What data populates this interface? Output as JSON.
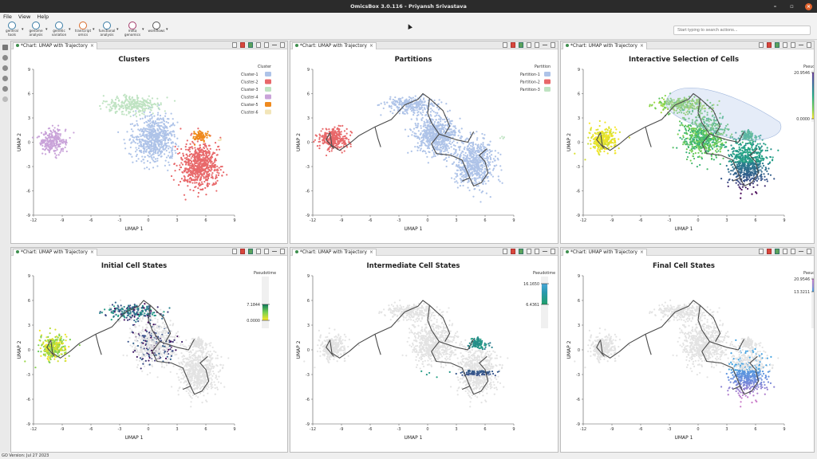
{
  "window": {
    "title": "OmicsBox 3.0.116 - Priyansh Srivastava"
  },
  "menu": [
    "File",
    "View",
    "Help"
  ],
  "toolbar": [
    {
      "label": "general\ntools",
      "icon": "gear-icon"
    },
    {
      "label": "genome\nanalysis",
      "icon": "genome-icon"
    },
    {
      "label": "genetic\nvariation",
      "icon": "variation-icon"
    },
    {
      "label": "transcript\nomics",
      "icon": "transcriptomics-icon"
    },
    {
      "label": "functional\nanalysis",
      "icon": "function-icon"
    },
    {
      "label": "meta\ngenomics",
      "icon": "metagenomics-icon"
    },
    {
      "label": "workflows",
      "icon": "workflow-icon"
    }
  ],
  "search": {
    "placeholder": "Start typing to search actions..."
  },
  "status": {
    "text": "GO Version: Jul 27 2023"
  },
  "tab_label": "*Chart: UMAP with Trajectory",
  "chart_data": [
    {
      "type": "scatter",
      "title": "Clusters",
      "xlabel": "UMAP 1",
      "ylabel": "UMAP 2",
      "xlim": [
        -12,
        9
      ],
      "ylim": [
        -9,
        9
      ],
      "xticks": [
        "-12",
        "-9",
        "-6",
        "-3",
        "0",
        "3",
        "6",
        "9"
      ],
      "yticks": [
        "-9",
        "-6",
        "-3",
        "0",
        "3",
        "6",
        "9"
      ],
      "legend": {
        "title": "Cluster",
        "placement": "top-right"
      },
      "series": [
        {
          "name": "Cluster-1",
          "color": "#aec3e8",
          "clusters": [
            [
              0.6,
              0.5,
              2.2,
              2.8,
              650
            ]
          ]
        },
        {
          "name": "Cluster-2",
          "color": "#e8686a",
          "clusters": [
            [
              5.3,
              -2.8,
              1.9,
              2.7,
              650
            ]
          ]
        },
        {
          "name": "Cluster-3",
          "color": "#bfe3c2",
          "clusters": [
            [
              -1.6,
              4.6,
              2.8,
              1.0,
              280
            ]
          ]
        },
        {
          "name": "Cluster-4",
          "color": "#c9a3d9",
          "clusters": [
            [
              -10.0,
              0.1,
              1.4,
              1.4,
              260
            ]
          ]
        },
        {
          "name": "Cluster-5",
          "color": "#ef8a1e",
          "clusters": [
            [
              5.4,
              0.8,
              0.8,
              0.7,
              90
            ]
          ]
        },
        {
          "name": "Cluster-6",
          "color": "#f2e5b8",
          "clusters": [
            [
              7.5,
              0.3,
              0.2,
              0.2,
              4
            ]
          ]
        }
      ]
    },
    {
      "type": "scatter",
      "title": "Partitions",
      "xlabel": "UMAP 1",
      "ylabel": "UMAP 2",
      "xlim": [
        -12,
        9
      ],
      "ylim": [
        -9,
        9
      ],
      "xticks": [
        "-12",
        "-9",
        "-6",
        "-3",
        "0",
        "3",
        "6",
        "9"
      ],
      "yticks": [
        "-9",
        "-6",
        "-3",
        "0",
        "3",
        "6",
        "9"
      ],
      "legend": {
        "title": "Partition",
        "placement": "top-right"
      },
      "series": [
        {
          "name": "Partition-1",
          "color": "#aec3e8",
          "clusters": [
            [
              -1.6,
              4.6,
              2.8,
              1.0,
              280
            ],
            [
              0.8,
              0.8,
              2.2,
              2.6,
              650
            ],
            [
              4.9,
              -2.6,
              2.0,
              2.8,
              650
            ]
          ]
        },
        {
          "name": "Partition-2",
          "color": "#e8686a",
          "clusters": [
            [
              -9.8,
              0.4,
              1.5,
              1.4,
              300
            ]
          ]
        },
        {
          "name": "Partition-3",
          "color": "#bfe3c2",
          "clusters": [
            [
              7.8,
              0.6,
              0.2,
              0.2,
              4
            ]
          ]
        }
      ],
      "trajectory": true
    },
    {
      "type": "scatter",
      "title": "Interactive Selection of Cells",
      "xlabel": "UMAP 1",
      "ylabel": "UMAP 2",
      "xlim": [
        -12,
        9
      ],
      "ylim": [
        -9,
        9
      ],
      "xticks": [
        "-12",
        "-9",
        "-6",
        "-3",
        "0",
        "3",
        "6",
        "9"
      ],
      "yticks": [
        "-9",
        "-6",
        "-3",
        "0",
        "3",
        "6",
        "9"
      ],
      "colorbar": {
        "title": "Pseudotime",
        "max": "20.9546",
        "min": "0.0000"
      },
      "trajectory": true,
      "selection_region": true,
      "mode": "full"
    },
    {
      "type": "scatter",
      "title": "Initial Cell States",
      "xlabel": "UMAP 1",
      "ylabel": "UMAP 2",
      "xlim": [
        -12,
        9
      ],
      "ylim": [
        -9,
        9
      ],
      "xticks": [
        "-12",
        "-9",
        "-6",
        "-3",
        "0",
        "3",
        "6",
        "9"
      ],
      "yticks": [
        "-9",
        "-6",
        "-3",
        "0",
        "3",
        "6",
        "9"
      ],
      "colorbar": {
        "title": "Pseudotime",
        "max": "7.1844",
        "min": "0.0000"
      },
      "trajectory": true,
      "mode": "initial"
    },
    {
      "type": "scatter",
      "title": "Intermediate Cell States",
      "xlabel": "UMAP 1",
      "ylabel": "UMAP 2",
      "xlim": [
        -12,
        9
      ],
      "ylim": [
        -9,
        9
      ],
      "xticks": [
        "-12",
        "-9",
        "-6",
        "-3",
        "0",
        "3",
        "6",
        "9"
      ],
      "yticks": [
        "-9",
        "-6",
        "-3",
        "0",
        "3",
        "6",
        "9"
      ],
      "colorbar": {
        "title": "Pseudotime",
        "max": "16.1650",
        "min": "6.4361"
      },
      "trajectory": true,
      "mode": "intermediate"
    },
    {
      "type": "scatter",
      "title": "Final Cell States",
      "xlabel": "UMAP 1",
      "ylabel": "UMAP 2",
      "xlim": [
        -12,
        9
      ],
      "ylim": [
        -9,
        9
      ],
      "xticks": [
        "-12",
        "-9",
        "-6",
        "-3",
        "0",
        "3",
        "6",
        "9"
      ],
      "yticks": [
        "-9",
        "-6",
        "-3",
        "0",
        "3",
        "6",
        "9"
      ],
      "colorbar": {
        "title": "Pseudotime",
        "max": "20.9546",
        "min": "13.3211"
      },
      "trajectory": true,
      "mode": "final"
    }
  ]
}
